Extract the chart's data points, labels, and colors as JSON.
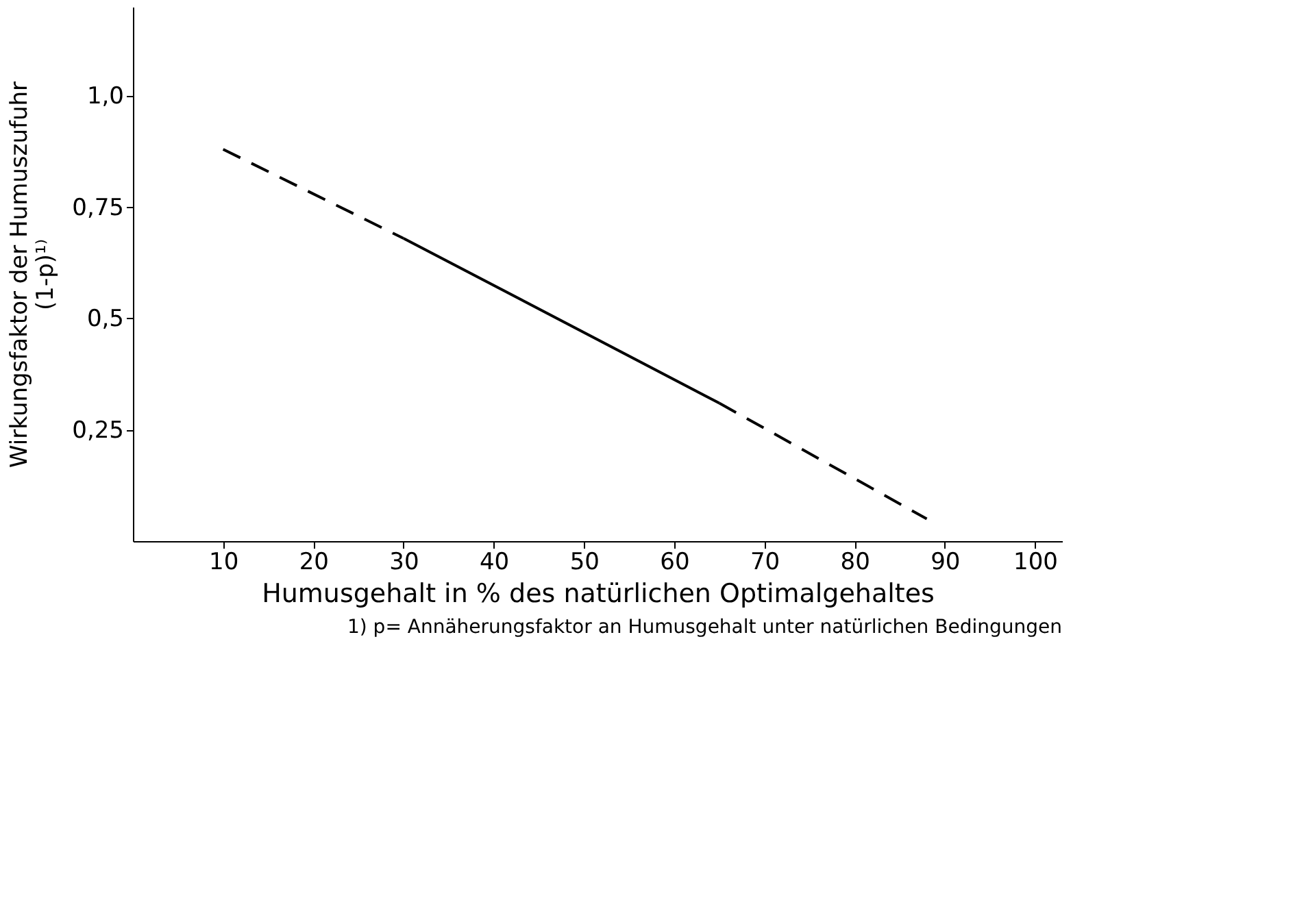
{
  "chart_data": {
    "type": "line",
    "xlabel": "Humusgehalt in % des natürlichen Optimalgehaltes",
    "ylabel": "Wirkungsfaktor der Humuszufuhr\n(1-p)¹⁾",
    "annotations": [
      "1) p= Annäherungsfaktor an Humusgehalt unter natürlichen Bedingungen"
    ],
    "series": [
      {
        "color": "#000000",
        "line_style": "dashed",
        "x": [
          10,
          30
        ],
        "values": [
          0.88,
          0.68
        ]
      },
      {
        "color": "#000000",
        "line_style": "solid",
        "x": [
          30,
          65
        ],
        "values": [
          0.68,
          0.31
        ]
      },
      {
        "color": "#000000",
        "line_style": "dashed",
        "x": [
          65,
          88
        ],
        "values": [
          0.31,
          0.05
        ]
      }
    ],
    "xlim": [
      0,
      103
    ],
    "xticks": [
      10,
      20,
      30,
      40,
      50,
      60,
      70,
      80,
      90,
      100
    ],
    "ylim": [
      0,
      1.2
    ],
    "yticks": [
      {
        "value": 0.25,
        "label": "0,25"
      },
      {
        "value": 0.5,
        "label": "0,5"
      },
      {
        "value": 0.75,
        "label": "0,75"
      },
      {
        "value": 1,
        "label": "1,0"
      }
    ],
    "grid": false,
    "marker": "none"
  }
}
